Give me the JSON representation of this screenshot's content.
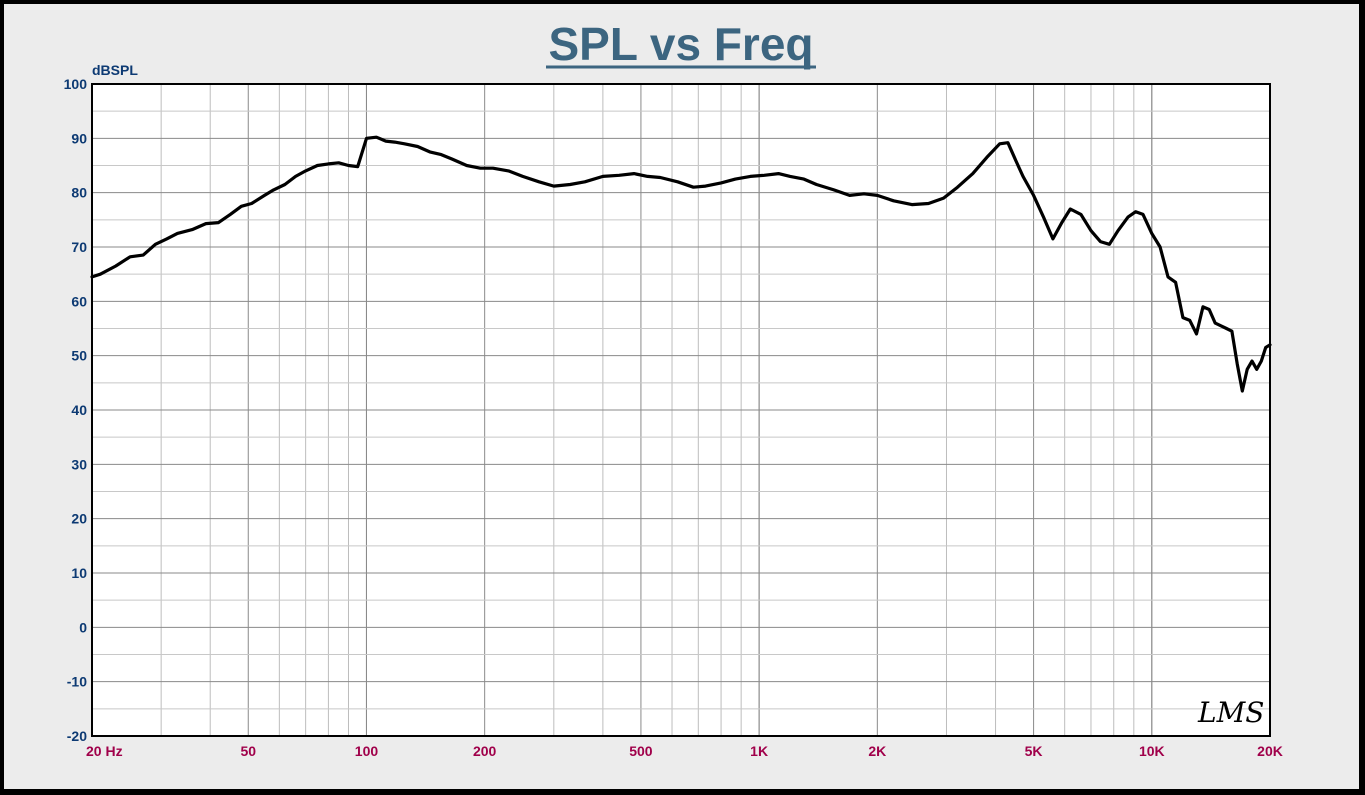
{
  "chart_data": {
    "type": "line",
    "title": "SPL vs Freq",
    "ylabel": "dBSPL",
    "xlabel": "",
    "x_scale": "log",
    "xlim": [
      20,
      20000
    ],
    "ylim": [
      -20,
      100
    ],
    "y_ticks": [
      {
        "value": 100,
        "label": "100"
      },
      {
        "value": 90,
        "label": "90"
      },
      {
        "value": 80,
        "label": "80"
      },
      {
        "value": 70,
        "label": "70"
      },
      {
        "value": 60,
        "label": "60"
      },
      {
        "value": 50,
        "label": "50"
      },
      {
        "value": 40,
        "label": "40"
      },
      {
        "value": 30,
        "label": "30"
      },
      {
        "value": 20,
        "label": "20"
      },
      {
        "value": 10,
        "label": "10"
      },
      {
        "value": 0,
        "label": "0"
      },
      {
        "value": -10,
        "label": "-10"
      },
      {
        "value": -20,
        "label": "-20"
      }
    ],
    "x_ticks": [
      {
        "value": 20,
        "label": "20  Hz"
      },
      {
        "value": 50,
        "label": "50"
      },
      {
        "value": 100,
        "label": "100"
      },
      {
        "value": 200,
        "label": "200"
      },
      {
        "value": 500,
        "label": "500"
      },
      {
        "value": 1000,
        "label": "1K"
      },
      {
        "value": 2000,
        "label": "2K"
      },
      {
        "value": 5000,
        "label": "5K"
      },
      {
        "value": 10000,
        "label": "10K"
      },
      {
        "value": 20000,
        "label": "20K"
      }
    ],
    "grid": true,
    "legend": "none",
    "series": [
      {
        "color": "#000000",
        "x": [
          20,
          21,
          23,
          25,
          27,
          29,
          31,
          33,
          36,
          39,
          42,
          45,
          48,
          51,
          55,
          58,
          62,
          66,
          70,
          75,
          80,
          85,
          90,
          95,
          100,
          106,
          112,
          118,
          125,
          135,
          145,
          155,
          165,
          180,
          195,
          210,
          230,
          250,
          275,
          300,
          330,
          360,
          400,
          440,
          480,
          520,
          560,
          620,
          680,
          730,
          800,
          870,
          950,
          1030,
          1120,
          1200,
          1300,
          1400,
          1550,
          1700,
          1850,
          2000,
          2200,
          2450,
          2700,
          2950,
          3200,
          3500,
          3800,
          4100,
          4300,
          4500,
          4700,
          5000,
          5300,
          5600,
          5900,
          6200,
          6600,
          7000,
          7400,
          7800,
          8200,
          8700,
          9100,
          9500,
          10000,
          10500,
          11000,
          11500,
          12000,
          12500,
          13000,
          13500,
          14000,
          14500,
          15000,
          15500,
          16000,
          16500,
          17000,
          17500,
          18000,
          18500,
          19000,
          19500,
          20000
        ],
        "y": [
          64.5,
          65,
          66.5,
          68.2,
          68.5,
          70.5,
          71.5,
          72.5,
          73.2,
          74.3,
          74.5,
          76,
          77.5,
          78,
          79.5,
          80.5,
          81.5,
          83,
          84,
          85,
          85.3,
          85.5,
          85,
          84.8,
          90,
          90.2,
          89.5,
          89.3,
          89,
          88.5,
          87.5,
          87,
          86.2,
          85,
          84.5,
          84.5,
          84,
          83,
          82,
          81.2,
          81.5,
          82,
          83,
          83.2,
          83.5,
          83,
          82.8,
          82,
          81,
          81.2,
          81.8,
          82.5,
          83,
          83.2,
          83.5,
          83,
          82.5,
          81.5,
          80.5,
          79.5,
          79.8,
          79.5,
          78.5,
          77.8,
          78,
          79,
          81,
          83.5,
          86.5,
          89,
          89.2,
          86,
          83,
          79.5,
          75.5,
          71.5,
          74.5,
          77,
          76,
          73,
          71,
          70.5,
          73,
          75.5,
          76.5,
          76,
          72.5,
          70,
          64.5,
          63.5,
          57,
          56.5,
          54,
          59,
          58.5,
          56,
          55.5,
          55,
          54.5,
          48.5,
          43.5,
          47.5,
          49,
          47.5,
          49,
          51.5,
          52
        ]
      }
    ],
    "logo_text": "LMS"
  }
}
